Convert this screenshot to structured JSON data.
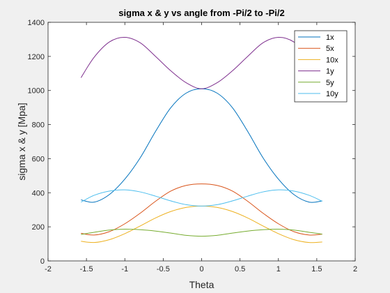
{
  "chart_data": {
    "type": "line",
    "title": "sigma x & y vs angle from -Pi/2 to -Pi/2",
    "xlabel": "Theta",
    "ylabel": "sigma x & y [Mpa]",
    "xlim": [
      -2,
      2
    ],
    "ylim": [
      0,
      1400
    ],
    "xticks": [
      "-2",
      "-1.5",
      "-1",
      "-0.5",
      "0",
      "0.5",
      "1",
      "1.5",
      "2"
    ],
    "yticks": [
      "0",
      "200",
      "400",
      "600",
      "800",
      "1000",
      "1200",
      "1400"
    ],
    "grid": false,
    "legend_position": "top-right",
    "x": [
      -1.5708,
      -1.4,
      -1.2,
      -1.0,
      -0.8,
      -0.6,
      -0.4,
      -0.2,
      0,
      0.2,
      0.4,
      0.6,
      0.8,
      1.0,
      1.2,
      1.4,
      1.5708
    ],
    "series": [
      {
        "name": "1x",
        "color": "#0072BD",
        "values": [
          358,
          345,
          390,
          480,
          605,
          760,
          900,
          985,
          1010,
          985,
          900,
          760,
          605,
          480,
          390,
          345,
          352
        ]
      },
      {
        "name": "5x",
        "color": "#D95319",
        "values": [
          162,
          152,
          172,
          218,
          280,
          350,
          410,
          443,
          452,
          443,
          410,
          350,
          280,
          218,
          172,
          152,
          157
        ]
      },
      {
        "name": "10x",
        "color": "#EDB120",
        "values": [
          115,
          108,
          125,
          160,
          205,
          252,
          290,
          314,
          322,
          314,
          290,
          252,
          205,
          160,
          125,
          108,
          111
        ]
      },
      {
        "name": "1y",
        "color": "#7E2F8E",
        "values": [
          1075,
          1195,
          1285,
          1312,
          1280,
          1200,
          1115,
          1045,
          1010,
          1045,
          1115,
          1200,
          1280,
          1312,
          1285,
          1195,
          1140
        ]
      },
      {
        "name": "5y",
        "color": "#77AC30",
        "values": [
          155,
          168,
          181,
          186,
          183,
          175,
          163,
          150,
          145,
          150,
          163,
          175,
          183,
          186,
          181,
          168,
          157
        ]
      },
      {
        "name": "10y",
        "color": "#4DBEEE",
        "values": [
          345,
          385,
          410,
          417,
          405,
          380,
          352,
          330,
          322,
          330,
          352,
          380,
          405,
          417,
          410,
          385,
          350
        ]
      }
    ]
  }
}
